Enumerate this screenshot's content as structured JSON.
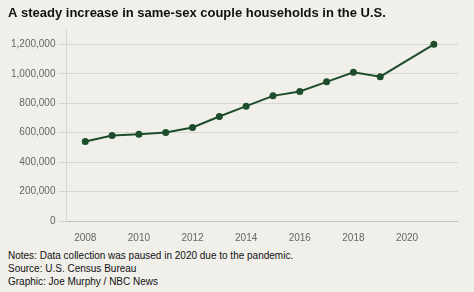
{
  "chart_data": {
    "type": "line",
    "title": "A steady increase in same-sex couple households in the U.S.",
    "x": [
      2008,
      2009,
      2010,
      2011,
      2012,
      2013,
      2014,
      2015,
      2016,
      2017,
      2018,
      2019,
      2021
    ],
    "values": [
      540000,
      580000,
      590000,
      601000,
      635000,
      710000,
      780000,
      850000,
      880000,
      945000,
      1010000,
      980000,
      1200000
    ],
    "color": "#1e4d2b",
    "marker": "circle",
    "xlim": [
      2007.3,
      2021.9
    ],
    "xticks": [
      2008,
      2010,
      2012,
      2014,
      2016,
      2018,
      2020
    ],
    "ylim": [
      0,
      1300000
    ],
    "yticks": [
      0,
      {
        "value": 200000,
        "label": "200,000"
      },
      {
        "value": 400000,
        "label": "400,000"
      },
      {
        "value": 600000,
        "label": "600,000"
      },
      {
        "value": 800000,
        "label": "800,000"
      },
      {
        "value": 1000000,
        "label": "1,000,000"
      },
      {
        "value": 1200000,
        "label": "1,200,000"
      }
    ],
    "grid": true,
    "annotations": [
      "Notes: Data collection was paused in 2020 due to the pandemic.",
      "Source: U.S. Census Bureau",
      "Graphic: Joe Murphy / NBC News"
    ]
  }
}
